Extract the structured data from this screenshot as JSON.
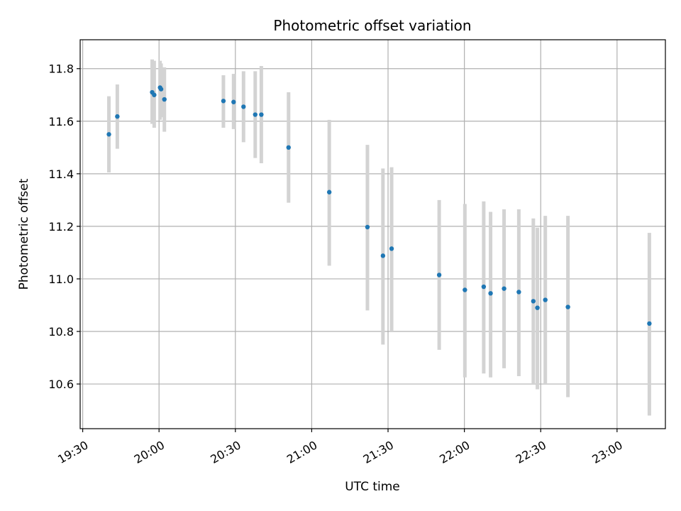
{
  "chart_data": {
    "type": "scatter",
    "title": "Photometric offset variation",
    "xlabel": "UTC time",
    "ylabel": "Photometric offset",
    "xlim_minutes": [
      1169,
      1399
    ],
    "ylim": [
      10.43,
      11.91
    ],
    "x_ticks": [
      {
        "minutes": 1170,
        "label": "19:30"
      },
      {
        "minutes": 1200,
        "label": "20:00"
      },
      {
        "minutes": 1230,
        "label": "20:30"
      },
      {
        "minutes": 1260,
        "label": "21:00"
      },
      {
        "minutes": 1290,
        "label": "21:30"
      },
      {
        "minutes": 1320,
        "label": "22:00"
      },
      {
        "minutes": 1350,
        "label": "22:30"
      },
      {
        "minutes": 1380,
        "label": "23:00"
      }
    ],
    "y_ticks": [
      {
        "value": 10.6,
        "label": "10.6"
      },
      {
        "value": 10.8,
        "label": "10.8"
      },
      {
        "value": 11.0,
        "label": "11.0"
      },
      {
        "value": 11.2,
        "label": "11.2"
      },
      {
        "value": 11.4,
        "label": "11.4"
      },
      {
        "value": 11.6,
        "label": "11.6"
      },
      {
        "value": 11.8,
        "label": "11.8"
      }
    ],
    "grid": true,
    "series": [
      {
        "name": "offset",
        "marker_color": "#1f77b4",
        "errorbar_color": "#d3d3d3",
        "points": [
          {
            "minutes": 1180.3,
            "y": 11.55,
            "lo": 11.405,
            "hi": 11.695
          },
          {
            "minutes": 1183.6,
            "y": 11.618,
            "lo": 11.495,
            "hi": 11.74
          },
          {
            "minutes": 1197.3,
            "y": 11.71,
            "lo": 11.59,
            "hi": 11.835
          },
          {
            "minutes": 1198.1,
            "y": 11.7,
            "lo": 11.575,
            "hi": 11.83
          },
          {
            "minutes": 1200.4,
            "y": 11.728,
            "lo": 11.605,
            "hi": 11.83
          },
          {
            "minutes": 1200.8,
            "y": 11.722,
            "lo": 11.615,
            "hi": 11.82
          },
          {
            "minutes": 1202.1,
            "y": 11.683,
            "lo": 11.56,
            "hi": 11.805
          },
          {
            "minutes": 1225.3,
            "y": 11.677,
            "lo": 11.575,
            "hi": 11.775
          },
          {
            "minutes": 1229.3,
            "y": 11.673,
            "lo": 11.57,
            "hi": 11.78
          },
          {
            "minutes": 1233.2,
            "y": 11.655,
            "lo": 11.52,
            "hi": 11.79
          },
          {
            "minutes": 1237.8,
            "y": 11.625,
            "lo": 11.46,
            "hi": 11.79
          },
          {
            "minutes": 1240.2,
            "y": 11.625,
            "lo": 11.44,
            "hi": 11.81
          },
          {
            "minutes": 1250.9,
            "y": 11.5,
            "lo": 11.29,
            "hi": 11.71
          },
          {
            "minutes": 1266.9,
            "y": 11.33,
            "lo": 11.05,
            "hi": 11.605
          },
          {
            "minutes": 1281.9,
            "y": 11.197,
            "lo": 10.88,
            "hi": 11.51
          },
          {
            "minutes": 1288.0,
            "y": 11.088,
            "lo": 10.75,
            "hi": 11.42
          },
          {
            "minutes": 1291.4,
            "y": 11.115,
            "lo": 10.8,
            "hi": 11.425
          },
          {
            "minutes": 1310.1,
            "y": 11.015,
            "lo": 10.73,
            "hi": 11.3
          },
          {
            "minutes": 1320.2,
            "y": 10.958,
            "lo": 10.625,
            "hi": 11.285
          },
          {
            "minutes": 1327.6,
            "y": 10.97,
            "lo": 10.64,
            "hi": 11.295
          },
          {
            "minutes": 1330.3,
            "y": 10.945,
            "lo": 10.625,
            "hi": 11.255
          },
          {
            "minutes": 1335.6,
            "y": 10.963,
            "lo": 10.66,
            "hi": 11.265
          },
          {
            "minutes": 1341.4,
            "y": 10.95,
            "lo": 10.63,
            "hi": 11.265
          },
          {
            "minutes": 1347.1,
            "y": 10.915,
            "lo": 10.6,
            "hi": 11.23
          },
          {
            "minutes": 1348.7,
            "y": 10.89,
            "lo": 10.58,
            "hi": 11.195
          },
          {
            "minutes": 1351.8,
            "y": 10.92,
            "lo": 10.6,
            "hi": 11.24
          },
          {
            "minutes": 1360.7,
            "y": 10.893,
            "lo": 10.55,
            "hi": 11.24
          },
          {
            "minutes": 1392.7,
            "y": 10.83,
            "lo": 10.48,
            "hi": 11.175
          }
        ]
      }
    ]
  }
}
